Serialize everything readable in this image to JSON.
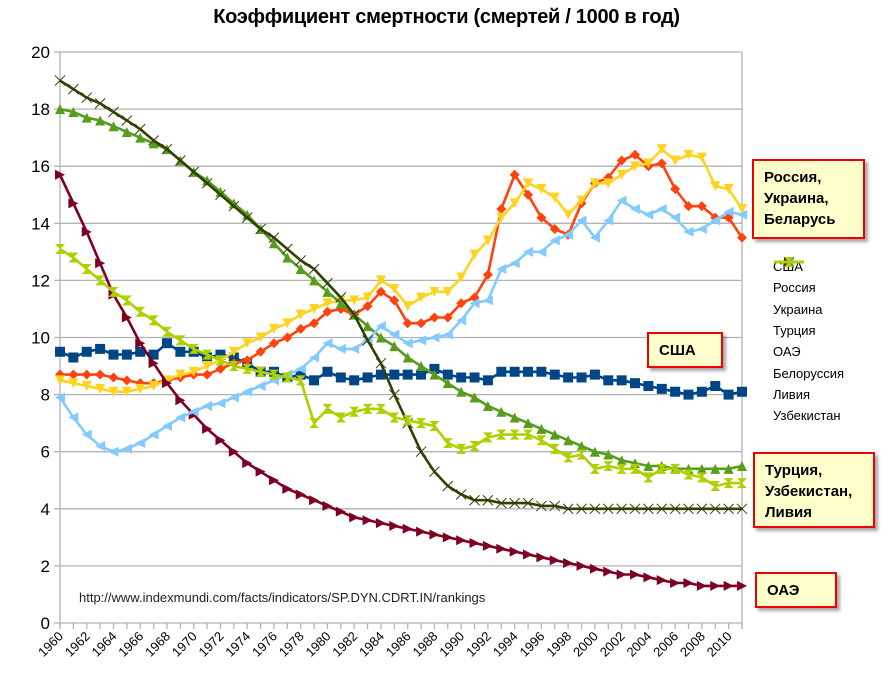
{
  "chart_data": {
    "type": "line",
    "title": "Коэффициент смертности (смертей / 1000 в год)",
    "xlabel": "",
    "ylabel": "",
    "ylim": [
      0,
      20
    ],
    "yticks": [
      "0",
      "2",
      "4",
      "6",
      "8",
      "10",
      "12",
      "14",
      "16",
      "18",
      "20"
    ],
    "xticks": [
      "1960",
      "1962",
      "1964",
      "1966",
      "1968",
      "1970",
      "1972",
      "1974",
      "1976",
      "1978",
      "1980",
      "1982",
      "1984",
      "1986",
      "1988",
      "1990",
      "1992",
      "1994",
      "1996",
      "1998",
      "2000",
      "2002",
      "2004",
      "2006",
      "2008",
      "2010"
    ],
    "grid": true,
    "legend_position": "right",
    "x": [
      1960,
      1961,
      1962,
      1963,
      1964,
      1965,
      1966,
      1967,
      1968,
      1969,
      1970,
      1971,
      1972,
      1973,
      1974,
      1975,
      1976,
      1977,
      1978,
      1979,
      1980,
      1981,
      1982,
      1983,
      1984,
      1985,
      1986,
      1987,
      1988,
      1989,
      1990,
      1991,
      1992,
      1993,
      1994,
      1995,
      1996,
      1997,
      1998,
      1999,
      2000,
      2001,
      2002,
      2003,
      2004,
      2005,
      2006,
      2007,
      2008,
      2009,
      2010,
      2011
    ],
    "series": [
      {
        "name": "США",
        "color": "#004586",
        "marker": "square",
        "values": [
          9.5,
          9.3,
          9.5,
          9.6,
          9.4,
          9.4,
          9.5,
          9.4,
          9.8,
          9.5,
          9.5,
          9.3,
          9.4,
          9.3,
          9.1,
          8.8,
          8.8,
          8.6,
          8.7,
          8.5,
          8.8,
          8.6,
          8.5,
          8.6,
          8.7,
          8.7,
          8.7,
          8.7,
          8.9,
          8.7,
          8.6,
          8.6,
          8.5,
          8.8,
          8.8,
          8.8,
          8.8,
          8.7,
          8.6,
          8.6,
          8.7,
          8.5,
          8.5,
          8.4,
          8.3,
          8.2,
          8.1,
          8.0,
          8.1,
          8.3,
          8.0,
          8.1
        ]
      },
      {
        "name": "Россия",
        "color": "#ff420e",
        "marker": "diamond",
        "values": [
          8.7,
          8.7,
          8.7,
          8.7,
          8.6,
          8.5,
          8.4,
          8.4,
          8.5,
          8.6,
          8.7,
          8.7,
          8.9,
          9.1,
          9.2,
          9.5,
          9.8,
          10.0,
          10.3,
          10.5,
          10.9,
          11.0,
          10.8,
          11.1,
          11.6,
          11.3,
          10.5,
          10.5,
          10.7,
          10.7,
          11.2,
          11.4,
          12.2,
          14.5,
          15.7,
          15.0,
          14.2,
          13.8,
          13.6,
          14.7,
          15.4,
          15.6,
          16.2,
          16.4,
          16.0,
          16.1,
          15.2,
          14.6,
          14.6,
          14.2,
          14.2,
          13.5
        ]
      },
      {
        "name": "Украина",
        "color": "#ffd320",
        "marker": "triangle-down",
        "values": [
          8.5,
          8.4,
          8.3,
          8.2,
          8.1,
          8.1,
          8.2,
          8.3,
          8.5,
          8.7,
          8.8,
          9.0,
          9.2,
          9.5,
          9.8,
          10.0,
          10.3,
          10.5,
          10.8,
          11.0,
          11.2,
          11.3,
          11.3,
          11.4,
          12.0,
          11.7,
          11.1,
          11.4,
          11.6,
          11.6,
          12.1,
          12.9,
          13.4,
          14.2,
          14.7,
          15.4,
          15.2,
          14.9,
          14.3,
          14.8,
          15.4,
          15.4,
          15.7,
          16.0,
          16.1,
          16.6,
          16.2,
          16.4,
          16.3,
          15.3,
          15.2,
          14.5
        ]
      },
      {
        "name": "Турция",
        "color": "#579d1c",
        "marker": "triangle-up",
        "values": [
          18.0,
          17.9,
          17.7,
          17.6,
          17.4,
          17.2,
          17.0,
          16.8,
          16.6,
          16.2,
          15.8,
          15.5,
          15.1,
          14.7,
          14.3,
          13.8,
          13.3,
          12.8,
          12.4,
          12.0,
          11.6,
          11.2,
          10.8,
          10.4,
          10.0,
          9.7,
          9.3,
          9.0,
          8.7,
          8.4,
          8.1,
          7.9,
          7.6,
          7.4,
          7.2,
          7.0,
          6.8,
          6.6,
          6.4,
          6.2,
          6.0,
          5.9,
          5.7,
          5.6,
          5.5,
          5.5,
          5.4,
          5.4,
          5.4,
          5.4,
          5.4,
          5.5
        ]
      },
      {
        "name": "ОАЭ",
        "color": "#7e0021",
        "marker": "triangle-right",
        "values": [
          15.7,
          14.7,
          13.7,
          12.6,
          11.5,
          10.7,
          9.8,
          9.1,
          8.4,
          7.8,
          7.3,
          6.8,
          6.4,
          6.0,
          5.6,
          5.3,
          5.0,
          4.7,
          4.5,
          4.3,
          4.1,
          3.9,
          3.7,
          3.6,
          3.5,
          3.4,
          3.3,
          3.2,
          3.1,
          3.0,
          2.9,
          2.8,
          2.7,
          2.6,
          2.5,
          2.4,
          2.3,
          2.2,
          2.1,
          2.0,
          1.9,
          1.8,
          1.7,
          1.7,
          1.6,
          1.5,
          1.4,
          1.4,
          1.3,
          1.3,
          1.3,
          1.3
        ]
      },
      {
        "name": "Белоруссия",
        "color": "#83caff",
        "marker": "triangle-left",
        "values": [
          7.9,
          7.2,
          6.6,
          6.2,
          6.0,
          6.1,
          6.3,
          6.6,
          6.9,
          7.2,
          7.4,
          7.6,
          7.7,
          7.9,
          8.1,
          8.3,
          8.5,
          8.7,
          8.9,
          9.3,
          9.8,
          9.6,
          9.6,
          9.9,
          10.4,
          10.1,
          9.8,
          9.9,
          10.0,
          10.1,
          10.6,
          11.2,
          11.3,
          12.4,
          12.6,
          13.0,
          13.0,
          13.4,
          13.6,
          14.1,
          13.5,
          14.1,
          14.8,
          14.5,
          14.3,
          14.5,
          14.2,
          13.7,
          13.8,
          14.1,
          14.4,
          14.3
        ]
      },
      {
        "name": "Ливия",
        "color": "#314004",
        "marker": "bowtie",
        "values": [
          19.0,
          18.7,
          18.4,
          18.2,
          17.9,
          17.6,
          17.3,
          16.9,
          16.6,
          16.2,
          15.8,
          15.4,
          15.0,
          14.6,
          14.2,
          13.8,
          13.5,
          13.1,
          12.7,
          12.4,
          11.9,
          11.4,
          10.8,
          9.9,
          9.1,
          8.0,
          7.0,
          6.0,
          5.3,
          4.8,
          4.5,
          4.3,
          4.3,
          4.2,
          4.2,
          4.2,
          4.1,
          4.1,
          4.0,
          4.0,
          4.0,
          4.0,
          4.0,
          4.0,
          4.0,
          4.0,
          4.0,
          4.0,
          4.0,
          4.0,
          4.0,
          4.0
        ]
      },
      {
        "name": "Узбекистан",
        "color": "#aecf00",
        "marker": "hourglass",
        "values": [
          13.1,
          12.8,
          12.4,
          12.0,
          11.6,
          11.3,
          10.9,
          10.6,
          10.2,
          9.9,
          9.6,
          9.4,
          9.2,
          9.0,
          8.9,
          8.8,
          8.7,
          8.6,
          8.5,
          7.0,
          7.5,
          7.2,
          7.4,
          7.5,
          7.5,
          7.2,
          7.1,
          7.0,
          6.9,
          6.3,
          6.1,
          6.2,
          6.5,
          6.6,
          6.6,
          6.6,
          6.4,
          6.1,
          5.8,
          5.9,
          5.4,
          5.5,
          5.4,
          5.4,
          5.1,
          5.4,
          5.4,
          5.2,
          5.1,
          4.8,
          4.9,
          4.9
        ]
      }
    ]
  },
  "callouts": {
    "group_east": "Россия,\nУкраина,\nБеларусь",
    "usa": "США",
    "group_south": "Турция,\nУзбекистан,\nЛивия",
    "uae": "ОАЭ"
  },
  "source": "http://www.indexmundi.com/facts/indicators/SP.DYN.CDRT.IN/rankings"
}
